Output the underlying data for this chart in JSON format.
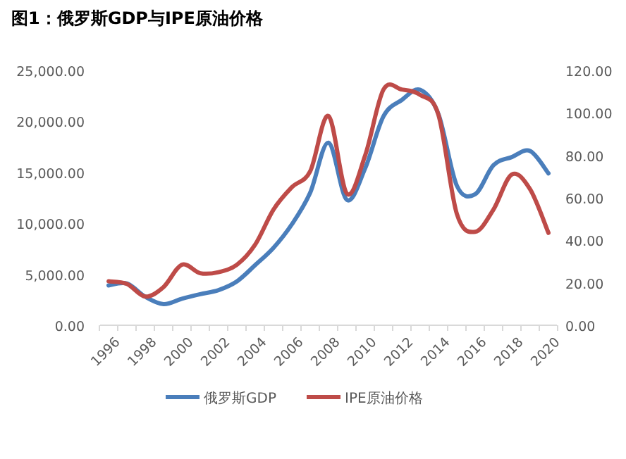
{
  "chart_data": {
    "type": "line",
    "title": "图1：俄罗斯GDP与IPE原油价格",
    "categories": [
      "1996",
      null,
      "1998",
      null,
      "2000",
      null,
      "2002",
      null,
      "2004",
      null,
      "2006",
      null,
      "2008",
      null,
      "2010",
      null,
      "2012",
      null,
      "2014",
      null,
      "2016",
      null,
      "2018",
      null,
      "2020"
    ],
    "series": [
      {
        "name": "俄罗斯GDP",
        "color": "#4a7ebb",
        "values": [
          3900,
          4100,
          2800,
          2070,
          2600,
          3050,
          3450,
          4300,
          5900,
          7600,
          9900,
          13000,
          17900,
          12300,
          15400,
          20500,
          22100,
          23100,
          20700,
          13700,
          12850,
          15700,
          16500,
          17100,
          14900
        ]
      },
      {
        "name": "IPE原油价格",
        "color": "#be4b48",
        "axis": "y2",
        "values": [
          20.7,
          19.5,
          13.5,
          18,
          28.5,
          24.5,
          25,
          28.5,
          38,
          54.5,
          65,
          72.5,
          98.5,
          62,
          80,
          111,
          111,
          108.5,
          99,
          52.5,
          44,
          54.5,
          71,
          64,
          43.5
        ]
      }
    ],
    "ylim": [
      0,
      25000
    ],
    "yticks": [
      {
        "value": 0,
        "label": "0.00"
      },
      {
        "value": 5000,
        "label": "5,000.00"
      },
      {
        "value": 10000,
        "label": "10,000.00"
      },
      {
        "value": 15000,
        "label": "15,000.00"
      },
      {
        "value": 20000,
        "label": "20,000.00"
      },
      {
        "value": 25000,
        "label": "25,000.00"
      }
    ],
    "y2lim": [
      0,
      120
    ],
    "y2ticks": [
      {
        "value": 0,
        "label": "0.00"
      },
      {
        "value": 20,
        "label": "20.00"
      },
      {
        "value": 40,
        "label": "40.00"
      },
      {
        "value": 60,
        "label": "60.00"
      },
      {
        "value": 80,
        "label": "80.00"
      },
      {
        "value": 100,
        "label": "100.00"
      },
      {
        "value": 120,
        "label": "120.00"
      }
    ],
    "legend": "bottom"
  }
}
